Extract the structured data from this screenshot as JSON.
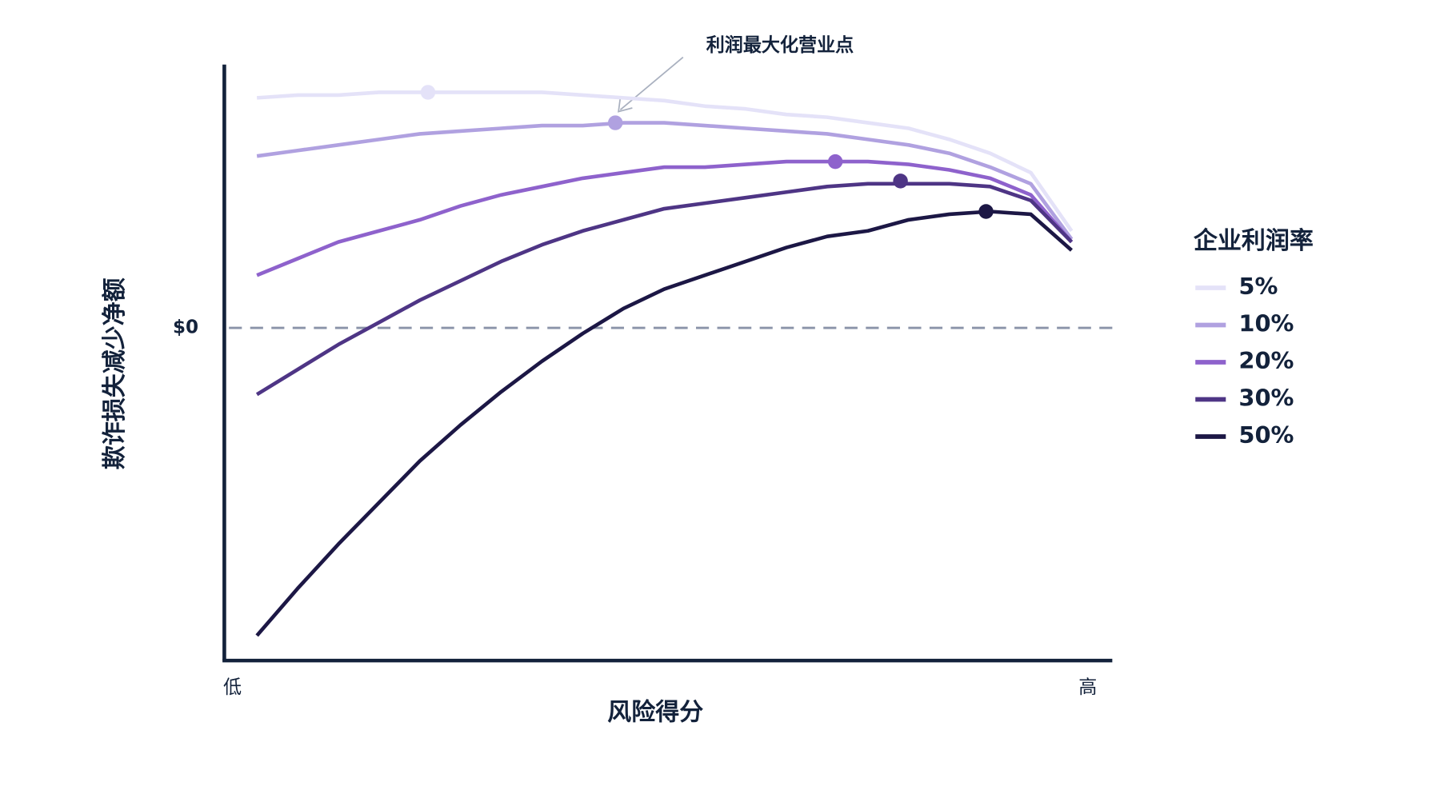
{
  "chart_data": {
    "type": "line",
    "xlabel": "风险得分",
    "ylabel": "欺诈损失减少净额",
    "annotation": "利润最大化营业点",
    "legend_title": "企业利润率",
    "x": [
      0,
      5,
      10,
      15,
      20,
      25,
      30,
      35,
      40,
      45,
      50,
      55,
      60,
      65,
      70,
      75,
      80,
      85,
      90,
      95,
      100
    ],
    "xlim": [
      -4,
      105
    ],
    "xticks": [
      {
        "value": -3,
        "label": "低"
      },
      {
        "value": 102,
        "label": "高"
      }
    ],
    "ylim": [
      -120,
      95
    ],
    "yticks": [
      {
        "value": 0,
        "label": "$0"
      }
    ],
    "series": [
      {
        "name": "5%",
        "color": "#e4e2f8",
        "values": [
          83,
          84,
          84,
          85,
          85,
          85,
          85,
          85,
          84,
          83,
          82,
          80,
          79,
          77,
          76,
          74,
          72,
          68,
          63,
          56,
          35
        ],
        "peak": {
          "x": 21,
          "y": 85
        }
      },
      {
        "name": "10%",
        "color": "#b0a1e0",
        "values": [
          62,
          64,
          66,
          68,
          70,
          71,
          72,
          73,
          73,
          74,
          74,
          73,
          72,
          71,
          70,
          68,
          66,
          63,
          58,
          52,
          32
        ],
        "peak": {
          "x": 44,
          "y": 74
        }
      },
      {
        "name": "20%",
        "color": "#8e62cc",
        "values": [
          19,
          25,
          31,
          35,
          39,
          44,
          48,
          51,
          54,
          56,
          58,
          58,
          59,
          60,
          60,
          60,
          59,
          57,
          54,
          48,
          31
        ],
        "peak": {
          "x": 71,
          "y": 60
        }
      },
      {
        "name": "30%",
        "color": "#4e3585",
        "values": [
          -24,
          -15,
          -6,
          2,
          10,
          17,
          24,
          30,
          35,
          39,
          43,
          45,
          47,
          49,
          51,
          52,
          52,
          52,
          51,
          46,
          31
        ],
        "peak": {
          "x": 79,
          "y": 53
        }
      },
      {
        "name": "50%",
        "color": "#1c1745",
        "values": [
          -111,
          -94,
          -78,
          -63,
          -48,
          -35,
          -23,
          -12,
          -2,
          7,
          14,
          19,
          24,
          29,
          33,
          35,
          39,
          41,
          42,
          41,
          28
        ],
        "peak": {
          "x": 89.5,
          "y": 42
        }
      }
    ]
  }
}
